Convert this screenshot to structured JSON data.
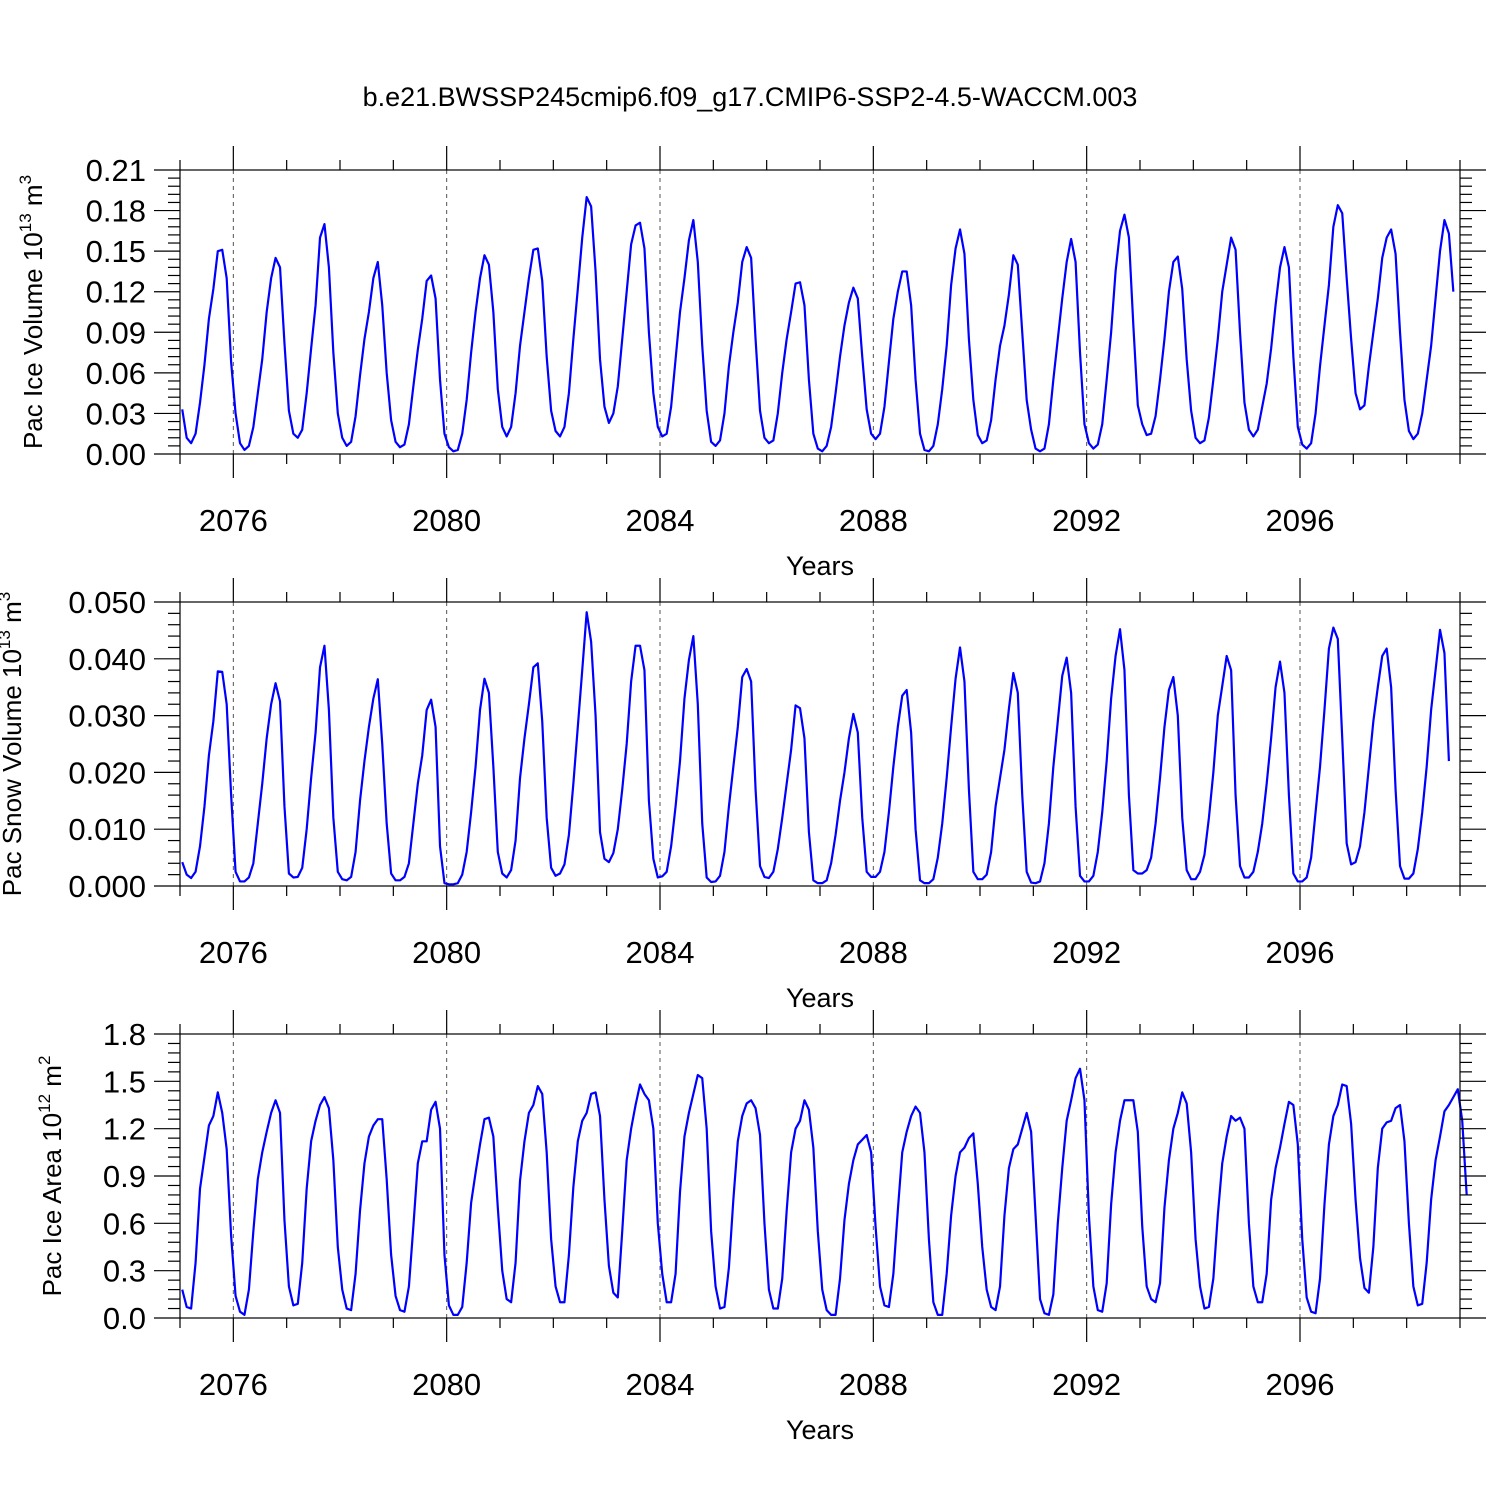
{
  "figure": {
    "title": "b.e21.BWSSP245cmip6.f09_g17.CMIP6-SSP2-4.5-WACCM.003",
    "line_color": "#0000ff"
  },
  "chart_data": [
    {
      "type": "line",
      "title": "",
      "xlabel": "Years",
      "ylabel": "Pac Ice Volume 10",
      "ylabel_exp": "13",
      "ylabel_unit": " m",
      "ylabel_unit_exp": "3",
      "xlim": [
        2075,
        2099
      ],
      "ylim": [
        0,
        0.21
      ],
      "x_ticks": [
        2076,
        2080,
        2084,
        2088,
        2092,
        2096
      ],
      "y_ticks": [
        "0.00",
        "0.03",
        "0.06",
        "0.09",
        "0.12",
        "0.15",
        "0.18",
        "0.21"
      ],
      "grid_x": true,
      "series": [
        {
          "x_start": 2075.042,
          "x_step": 0.0833333,
          "values": [
            0.033,
            0.012,
            0.008,
            0.015,
            0.038,
            0.066,
            0.1,
            0.122,
            0.15,
            0.151,
            0.13,
            0.068,
            0.03,
            0.008,
            0.003,
            0.006,
            0.02,
            0.045,
            0.07,
            0.105,
            0.13,
            0.145,
            0.138,
            0.082,
            0.032,
            0.015,
            0.012,
            0.018,
            0.045,
            0.078,
            0.11,
            0.16,
            0.17,
            0.138,
            0.075,
            0.03,
            0.012,
            0.006,
            0.009,
            0.028,
            0.058,
            0.085,
            0.105,
            0.13,
            0.142,
            0.11,
            0.06,
            0.025,
            0.009,
            0.005,
            0.007,
            0.022,
            0.05,
            0.077,
            0.1,
            0.128,
            0.132,
            0.115,
            0.055,
            0.015,
            0.005,
            0.002,
            0.003,
            0.015,
            0.04,
            0.075,
            0.105,
            0.13,
            0.147,
            0.14,
            0.105,
            0.048,
            0.02,
            0.013,
            0.02,
            0.045,
            0.08,
            0.105,
            0.13,
            0.151,
            0.152,
            0.128,
            0.072,
            0.032,
            0.017,
            0.013,
            0.02,
            0.045,
            0.085,
            0.122,
            0.16,
            0.19,
            0.183,
            0.135,
            0.07,
            0.035,
            0.023,
            0.03,
            0.05,
            0.085,
            0.12,
            0.155,
            0.169,
            0.171,
            0.152,
            0.09,
            0.045,
            0.02,
            0.013,
            0.015,
            0.035,
            0.07,
            0.105,
            0.13,
            0.158,
            0.173,
            0.142,
            0.08,
            0.032,
            0.009,
            0.006,
            0.01,
            0.03,
            0.065,
            0.09,
            0.112,
            0.142,
            0.153,
            0.145,
            0.085,
            0.032,
            0.012,
            0.008,
            0.01,
            0.03,
            0.06,
            0.085,
            0.105,
            0.126,
            0.127,
            0.11,
            0.055,
            0.015,
            0.004,
            0.002,
            0.006,
            0.02,
            0.045,
            0.072,
            0.095,
            0.112,
            0.123,
            0.115,
            0.072,
            0.033,
            0.015,
            0.011,
            0.015,
            0.035,
            0.068,
            0.1,
            0.12,
            0.135,
            0.135,
            0.11,
            0.055,
            0.015,
            0.003,
            0.002,
            0.006,
            0.022,
            0.048,
            0.08,
            0.125,
            0.152,
            0.166,
            0.148,
            0.085,
            0.04,
            0.014,
            0.008,
            0.01,
            0.025,
            0.055,
            0.08,
            0.095,
            0.118,
            0.147,
            0.14,
            0.09,
            0.04,
            0.018,
            0.004,
            0.002,
            0.004,
            0.022,
            0.055,
            0.085,
            0.115,
            0.142,
            0.159,
            0.142,
            0.075,
            0.022,
            0.008,
            0.004,
            0.007,
            0.022,
            0.055,
            0.09,
            0.135,
            0.165,
            0.177,
            0.16,
            0.095,
            0.036,
            0.022,
            0.014,
            0.015,
            0.028,
            0.055,
            0.085,
            0.12,
            0.142,
            0.146,
            0.122,
            0.07,
            0.032,
            0.012,
            0.008,
            0.01,
            0.027,
            0.055,
            0.085,
            0.12,
            0.14,
            0.16,
            0.151,
            0.09,
            0.038,
            0.018,
            0.013,
            0.018,
            0.035,
            0.052,
            0.078,
            0.11,
            0.138,
            0.153,
            0.138,
            0.072,
            0.02,
            0.007,
            0.004,
            0.008,
            0.03,
            0.065,
            0.095,
            0.125,
            0.168,
            0.184,
            0.178,
            0.13,
            0.085,
            0.045,
            0.033,
            0.036,
            0.065,
            0.09,
            0.115,
            0.145,
            0.16,
            0.166,
            0.148,
            0.09,
            0.04,
            0.017,
            0.011,
            0.015,
            0.03,
            0.055,
            0.08,
            0.115,
            0.15,
            0.173,
            0.163,
            0.12
          ]
        }
      ]
    },
    {
      "type": "line",
      "title": "",
      "xlabel": "Years",
      "ylabel": "Pac Snow Volume 10",
      "ylabel_exp": "13",
      "ylabel_unit": " m",
      "ylabel_unit_exp": "3",
      "xlim": [
        2075,
        2099
      ],
      "ylim": [
        0,
        0.05
      ],
      "x_ticks": [
        2076,
        2080,
        2084,
        2088,
        2092,
        2096
      ],
      "y_ticks": [
        "0.000",
        "0.010",
        "0.020",
        "0.030",
        "0.040",
        "0.050"
      ],
      "grid_x": true,
      "series": [
        {
          "x_start": 2075.042,
          "x_step": 0.0833333,
          "values": [
            0.0042,
            0.002,
            0.0014,
            0.0025,
            0.007,
            0.014,
            0.023,
            0.029,
            0.0378,
            0.0377,
            0.032,
            0.016,
            0.0025,
            0.0008,
            0.0008,
            0.0015,
            0.004,
            0.011,
            0.018,
            0.026,
            0.032,
            0.0357,
            0.0325,
            0.014,
            0.0022,
            0.0015,
            0.0016,
            0.0032,
            0.01,
            0.019,
            0.027,
            0.0385,
            0.0423,
            0.031,
            0.012,
            0.0025,
            0.0012,
            0.001,
            0.0016,
            0.006,
            0.015,
            0.022,
            0.028,
            0.033,
            0.0364,
            0.025,
            0.011,
            0.0022,
            0.001,
            0.001,
            0.0016,
            0.004,
            0.011,
            0.018,
            0.023,
            0.031,
            0.0328,
            0.028,
            0.007,
            0.0005,
            0.0003,
            0.0003,
            0.0005,
            0.002,
            0.006,
            0.013,
            0.021,
            0.031,
            0.0365,
            0.034,
            0.021,
            0.006,
            0.0022,
            0.0015,
            0.0028,
            0.008,
            0.019,
            0.026,
            0.032,
            0.0385,
            0.0392,
            0.029,
            0.012,
            0.0032,
            0.0018,
            0.0022,
            0.0038,
            0.009,
            0.018,
            0.028,
            0.038,
            0.0482,
            0.043,
            0.03,
            0.0095,
            0.0048,
            0.0042,
            0.0058,
            0.01,
            0.017,
            0.025,
            0.036,
            0.0423,
            0.0423,
            0.038,
            0.015,
            0.0048,
            0.0015,
            0.0017,
            0.0025,
            0.007,
            0.014,
            0.022,
            0.033,
            0.0398,
            0.044,
            0.032,
            0.011,
            0.0015,
            0.0007,
            0.0008,
            0.0018,
            0.006,
            0.014,
            0.021,
            0.028,
            0.0368,
            0.0382,
            0.036,
            0.017,
            0.0035,
            0.0016,
            0.0014,
            0.0025,
            0.0065,
            0.012,
            0.018,
            0.024,
            0.0318,
            0.0313,
            0.026,
            0.0095,
            0.001,
            0.0005,
            0.0005,
            0.001,
            0.004,
            0.009,
            0.015,
            0.02,
            0.026,
            0.0303,
            0.027,
            0.012,
            0.0025,
            0.0016,
            0.0016,
            0.0025,
            0.006,
            0.013,
            0.021,
            0.028,
            0.0335,
            0.0345,
            0.027,
            0.01,
            0.001,
            0.0005,
            0.0005,
            0.0012,
            0.005,
            0.011,
            0.019,
            0.028,
            0.0365,
            0.042,
            0.036,
            0.017,
            0.0025,
            0.0012,
            0.0012,
            0.002,
            0.006,
            0.014,
            0.019,
            0.024,
            0.0312,
            0.0375,
            0.034,
            0.016,
            0.0025,
            0.0006,
            0.0005,
            0.0008,
            0.004,
            0.011,
            0.021,
            0.029,
            0.037,
            0.0402,
            0.034,
            0.014,
            0.0018,
            0.0008,
            0.0008,
            0.0018,
            0.006,
            0.013,
            0.022,
            0.033,
            0.0405,
            0.0452,
            0.038,
            0.016,
            0.0028,
            0.0022,
            0.0022,
            0.0028,
            0.005,
            0.011,
            0.019,
            0.028,
            0.0345,
            0.0368,
            0.03,
            0.012,
            0.0028,
            0.0012,
            0.0012,
            0.0025,
            0.0055,
            0.012,
            0.02,
            0.03,
            0.0352,
            0.0405,
            0.038,
            0.016,
            0.0035,
            0.0015,
            0.0015,
            0.0025,
            0.006,
            0.011,
            0.018,
            0.026,
            0.035,
            0.0395,
            0.034,
            0.016,
            0.0022,
            0.0008,
            0.0008,
            0.0015,
            0.005,
            0.013,
            0.021,
            0.031,
            0.0418,
            0.0455,
            0.0435,
            0.026,
            0.0075,
            0.0038,
            0.0042,
            0.007,
            0.013,
            0.021,
            0.029,
            0.035,
            0.0405,
            0.0418,
            0.035,
            0.017,
            0.0035,
            0.0013,
            0.0013,
            0.0022,
            0.0065,
            0.013,
            0.021,
            0.031,
            0.038,
            0.0451,
            0.041,
            0.022
          ]
        }
      ]
    },
    {
      "type": "line",
      "title": "",
      "xlabel": "Years",
      "ylabel": "Pac Ice Area 10",
      "ylabel_exp": "12",
      "ylabel_unit": " m",
      "ylabel_unit_exp": "2",
      "xlim": [
        2075,
        2099
      ],
      "ylim": [
        0,
        1.8
      ],
      "x_ticks": [
        2076,
        2080,
        2084,
        2088,
        2092,
        2096
      ],
      "y_ticks": [
        "0.0",
        "0.3",
        "0.6",
        "0.9",
        "1.2",
        "1.5",
        "1.8"
      ],
      "grid_x": true,
      "series": [
        {
          "x_start": 2075.042,
          "x_step": 0.0833333,
          "values": [
            0.18,
            0.07,
            0.06,
            0.35,
            0.82,
            1.02,
            1.22,
            1.28,
            1.43,
            1.3,
            1.07,
            0.52,
            0.14,
            0.04,
            0.02,
            0.18,
            0.55,
            0.88,
            1.05,
            1.18,
            1.3,
            1.38,
            1.3,
            0.62,
            0.2,
            0.08,
            0.09,
            0.35,
            0.82,
            1.12,
            1.25,
            1.35,
            1.4,
            1.33,
            1.0,
            0.45,
            0.18,
            0.06,
            0.05,
            0.28,
            0.68,
            0.98,
            1.15,
            1.22,
            1.26,
            1.26,
            0.88,
            0.4,
            0.14,
            0.05,
            0.04,
            0.2,
            0.58,
            0.98,
            1.12,
            1.12,
            1.32,
            1.37,
            1.2,
            0.4,
            0.08,
            0.02,
            0.02,
            0.07,
            0.35,
            0.73,
            0.92,
            1.1,
            1.26,
            1.27,
            1.15,
            0.7,
            0.3,
            0.12,
            0.1,
            0.35,
            0.87,
            1.12,
            1.3,
            1.35,
            1.47,
            1.42,
            1.05,
            0.5,
            0.2,
            0.1,
            0.1,
            0.4,
            0.83,
            1.12,
            1.25,
            1.3,
            1.42,
            1.43,
            1.28,
            0.75,
            0.33,
            0.16,
            0.13,
            0.55,
            1.0,
            1.2,
            1.35,
            1.48,
            1.42,
            1.38,
            1.2,
            0.6,
            0.28,
            0.1,
            0.1,
            0.28,
            0.8,
            1.15,
            1.3,
            1.42,
            1.54,
            1.52,
            1.2,
            0.55,
            0.2,
            0.06,
            0.07,
            0.32,
            0.75,
            1.12,
            1.28,
            1.36,
            1.38,
            1.33,
            1.16,
            0.6,
            0.18,
            0.06,
            0.06,
            0.25,
            0.68,
            1.05,
            1.2,
            1.25,
            1.38,
            1.32,
            1.08,
            0.55,
            0.18,
            0.05,
            0.02,
            0.02,
            0.25,
            0.62,
            0.85,
            1.0,
            1.1,
            1.13,
            1.16,
            1.05,
            0.58,
            0.2,
            0.08,
            0.07,
            0.28,
            0.68,
            1.05,
            1.18,
            1.28,
            1.34,
            1.3,
            1.05,
            0.5,
            0.1,
            0.02,
            0.02,
            0.28,
            0.65,
            0.9,
            1.05,
            1.08,
            1.14,
            1.17,
            0.85,
            0.45,
            0.18,
            0.07,
            0.05,
            0.2,
            0.65,
            0.95,
            1.07,
            1.1,
            1.2,
            1.3,
            1.18,
            0.65,
            0.12,
            0.03,
            0.02,
            0.15,
            0.6,
            0.95,
            1.25,
            1.38,
            1.52,
            1.58,
            1.38,
            0.65,
            0.2,
            0.05,
            0.04,
            0.22,
            0.72,
            1.05,
            1.25,
            1.38,
            1.38,
            1.38,
            1.18,
            0.58,
            0.2,
            0.12,
            0.1,
            0.22,
            0.7,
            1.0,
            1.2,
            1.3,
            1.43,
            1.36,
            1.05,
            0.5,
            0.2,
            0.06,
            0.07,
            0.25,
            0.65,
            0.98,
            1.15,
            1.28,
            1.25,
            1.27,
            1.2,
            0.6,
            0.2,
            0.1,
            0.1,
            0.28,
            0.75,
            0.95,
            1.08,
            1.23,
            1.37,
            1.35,
            1.1,
            0.5,
            0.13,
            0.04,
            0.03,
            0.25,
            0.72,
            1.1,
            1.28,
            1.35,
            1.48,
            1.47,
            1.23,
            0.75,
            0.38,
            0.19,
            0.16,
            0.45,
            0.95,
            1.2,
            1.24,
            1.25,
            1.33,
            1.35,
            1.12,
            0.6,
            0.2,
            0.08,
            0.09,
            0.35,
            0.75,
            1.0,
            1.15,
            1.31,
            1.35,
            1.4,
            1.45,
            1.25,
            0.78
          ]
        }
      ]
    }
  ]
}
